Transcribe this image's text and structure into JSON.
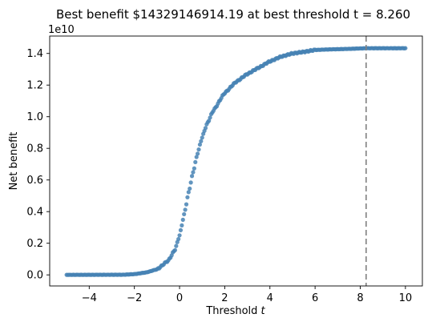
{
  "chart_data": {
    "type": "scatter",
    "title": "Best benefit $14329146914.19 at best threshold t = 8.260",
    "xlabel": "Threshold ",
    "xlabel_var": "t",
    "ylabel": "Net benefit",
    "y_offset_text": "1e10",
    "xlim": [
      -5.75,
      10.75
    ],
    "ylim": [
      -0.07,
      1.51
    ],
    "x_ticks": [
      -4,
      -2,
      0,
      2,
      4,
      6,
      8,
      10
    ],
    "x_tick_labels": [
      "−4",
      "−2",
      "0",
      "2",
      "4",
      "6",
      "8",
      "10"
    ],
    "y_ticks": [
      0.0,
      0.2,
      0.4,
      0.6,
      0.8,
      1.0,
      1.2,
      1.4
    ],
    "y_tick_labels": [
      "0.0",
      "0.2",
      "0.4",
      "0.6",
      "0.8",
      "1.0",
      "1.2",
      "1.4"
    ],
    "y_unit_multiplier": 10000000000,
    "best_threshold": 8.26,
    "best_benefit": 14329146914.19,
    "grid": false,
    "marker_color": "#4682b4",
    "vline_color": "#808080",
    "x_range": [
      -5.0,
      10.0
    ],
    "curve_points": [
      [
        -5.0,
        0.0
      ],
      [
        -2.5,
        0.001
      ],
      [
        -2.0,
        0.005
      ],
      [
        -1.5,
        0.015
      ],
      [
        -1.0,
        0.035
      ],
      [
        -0.5,
        0.09
      ],
      [
        -0.2,
        0.16
      ],
      [
        0.0,
        0.25
      ],
      [
        0.2,
        0.38
      ],
      [
        0.4,
        0.52
      ],
      [
        0.6,
        0.65
      ],
      [
        0.8,
        0.77
      ],
      [
        1.0,
        0.87
      ],
      [
        1.2,
        0.95
      ],
      [
        1.5,
        1.04
      ],
      [
        2.0,
        1.15
      ],
      [
        2.5,
        1.22
      ],
      [
        3.0,
        1.27
      ],
      [
        3.5,
        1.31
      ],
      [
        4.0,
        1.35
      ],
      [
        4.5,
        1.38
      ],
      [
        5.0,
        1.4
      ],
      [
        5.5,
        1.41
      ],
      [
        6.0,
        1.422
      ],
      [
        6.5,
        1.425
      ],
      [
        7.0,
        1.427
      ],
      [
        7.5,
        1.429
      ],
      [
        8.26,
        1.433
      ],
      [
        9.0,
        1.433
      ],
      [
        10.0,
        1.433
      ]
    ]
  }
}
